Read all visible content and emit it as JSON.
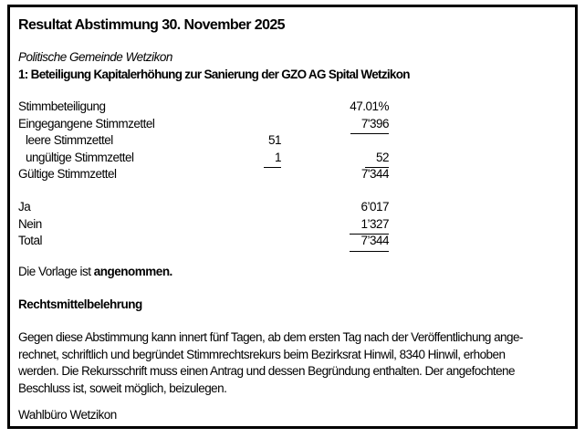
{
  "title": "Resultat Abstimmung 30. November 2025",
  "municipality": "Politische Gemeinde Wetzikon",
  "subject": "1: Beteiligung Kapitalerhöhung zur Sanierung der GZO AG Spital Wetzikon",
  "ballot_stats": {
    "rows": [
      {
        "label": "Stimmbeteiligung",
        "indent": false,
        "col1": "",
        "col1_underline": false,
        "col2": "47.01%",
        "col2_underline": false
      },
      {
        "label": "Eingegangene Stimmzettel",
        "indent": false,
        "col1": "",
        "col1_underline": false,
        "col2": "7'396",
        "col2_underline": true
      },
      {
        "label": "leere Stimmzettel",
        "indent": true,
        "col1": "51",
        "col1_underline": false,
        "col2": "",
        "col2_underline": false
      },
      {
        "label": "ungültige Stimmzettel",
        "indent": true,
        "col1": "1",
        "col1_underline": true,
        "col2": "52",
        "col2_underline": true
      },
      {
        "label": "Gültige Stimmzettel",
        "indent": false,
        "col1": "",
        "col1_underline": false,
        "col2": "7'344",
        "col2_underline": false
      }
    ]
  },
  "vote_results": {
    "rows": [
      {
        "label": "Ja",
        "col2": "6’017",
        "col2_underline": false
      },
      {
        "label": "Nein",
        "col2": "1’327",
        "col2_underline": true
      },
      {
        "label": "Total",
        "col2": "7’344",
        "col2_underline": true
      }
    ]
  },
  "decision": {
    "prefix": "Die Vorlage ist ",
    "verdict_bold": "angenommen."
  },
  "appeal": {
    "heading": "Rechtsmittelbelehrung",
    "lines": [
      "Gegen diese Abstimmung kann innert fünf Tagen, ab dem ersten Tag nach der Veröffentlichung ange-",
      "rechnet, schriftlich und begründet Stimmrechtsrekurs beim Bezirksrat Hinwil, 8340 Hinwil, erhoben",
      "werden. Die Rekursschrift muss einen Antrag und dessen Begründung enthalten. Der angefochtene",
      "Beschluss ist, soweit möglich, beizulegen."
    ]
  },
  "signature": "Wahlbüro Wetzikon"
}
